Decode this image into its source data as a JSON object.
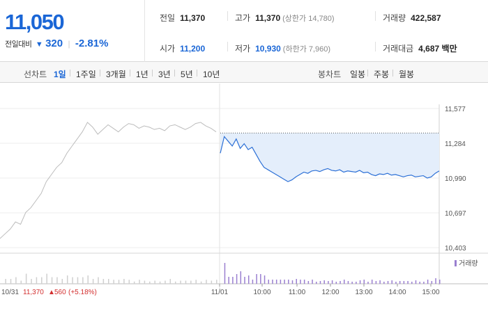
{
  "summary": {
    "price": "11,050",
    "change_label": "전일대비",
    "change_arrow": "▼",
    "change_value": "320",
    "change_pct": "-2.81%",
    "stats": {
      "prev_close": {
        "label": "전일",
        "value": "11,370"
      },
      "open": {
        "label": "시가",
        "value": "11,200"
      },
      "high": {
        "label": "고가",
        "value": "11,370",
        "sub": "(상한가 14,780)"
      },
      "low": {
        "label": "저가",
        "value": "10,930",
        "sub": "(하한가 7,960)"
      },
      "volume": {
        "label": "거래량",
        "value": "422,587"
      },
      "amount": {
        "label": "거래대금",
        "value": "4,687 백만"
      }
    }
  },
  "toolbar": {
    "line_label": "선차트",
    "line_items": [
      "1일",
      "1주일",
      "3개월",
      "1년",
      "3년",
      "5년",
      "10년"
    ],
    "active_line": "1일",
    "candle_label": "봉차트",
    "candle_items": [
      "일봉",
      "주봉",
      "월봉"
    ]
  },
  "chart_data": {
    "type": "line",
    "y_ticks": [
      "11,577",
      "11,284",
      "10,990",
      "10,697",
      "10,403"
    ],
    "ylim": [
      10403,
      11577
    ],
    "x_ticks": [
      "11/01",
      "10:00",
      "11:00",
      "12:00",
      "13:00",
      "14:00",
      "15:00"
    ],
    "prev_close": 11370,
    "previous_day": {
      "date": "10/31",
      "close": "11,370",
      "change_arrow": "▲",
      "change": "560",
      "change_pct": "(+5.18%)",
      "values": [
        10480,
        10520,
        10560,
        10620,
        10600,
        10700,
        10740,
        10800,
        10860,
        10960,
        11020,
        11080,
        11120,
        11200,
        11260,
        11320,
        11380,
        11460,
        11420,
        11360,
        11400,
        11440,
        11410,
        11380,
        11420,
        11450,
        11440,
        11410,
        11430,
        11420,
        11400,
        11410,
        11390,
        11430,
        11440,
        11420,
        11400,
        11420,
        11450,
        11460,
        11430,
        11410,
        11380
      ]
    },
    "today": {
      "values": [
        11200,
        11340,
        11300,
        11260,
        11320,
        11240,
        11280,
        11230,
        11250,
        11190,
        11130,
        11080,
        11060,
        11040,
        11020,
        11000,
        10980,
        10960,
        10975,
        11000,
        11020,
        11040,
        11030,
        11050,
        11055,
        11045,
        11060,
        11070,
        11055,
        11050,
        11060,
        11040,
        11050,
        11045,
        11040,
        11055,
        11035,
        11040,
        11020,
        11010,
        11025,
        11020,
        11030,
        11015,
        11020,
        11010,
        11000,
        11010,
        11015,
        11000,
        11005,
        11010,
        10990,
        11000,
        11030,
        11050
      ]
    },
    "volume_label": "거래량",
    "colors": {
      "today_line": "#2b6fd6",
      "today_fill": "#e4eefb",
      "prev_line": "#bcbcbc",
      "volume_today": "#9a7fd0",
      "volume_prev": "#cfcfcf",
      "up": "#d32f2f"
    }
  }
}
